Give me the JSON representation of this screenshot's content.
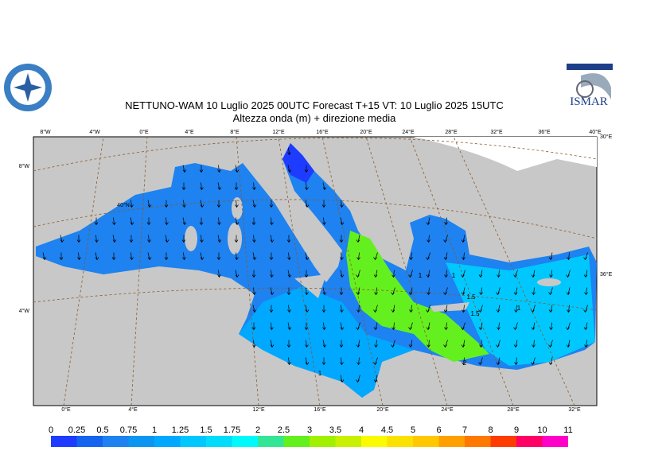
{
  "header": {
    "title": "NETTUNO-WAM  10  Luglio   2025 00UTC Forecast T+15 VT: 10  Luglio   2025 15UTC",
    "subtitle": "Altezza onda (m) + direzione media",
    "logo_right": "ISMAR"
  },
  "map": {
    "top_labels": [
      "8°W",
      "4°W",
      "0°E",
      "4°E",
      "8°E",
      "12°E",
      "16°E",
      "20°E",
      "24°E",
      "28°E",
      "32°E",
      "36°E",
      "40°E"
    ],
    "bottom_labels": [
      "0°E",
      "4°E",
      "12°E",
      "16°E",
      "20°E",
      "24°E",
      "28°E",
      "32°E"
    ],
    "left_labels": [
      "8°W",
      "4°W"
    ],
    "right_labels": [
      "30°E",
      "36°E"
    ],
    "inner_labels": [
      "40°N"
    ],
    "contour_labels": [
      "1",
      "1",
      "1",
      "1.5",
      "1.5",
      "2",
      "1"
    ]
  },
  "colorbar": {
    "levels": [
      0,
      0.25,
      0.5,
      0.75,
      1,
      1.25,
      1.5,
      1.75,
      2,
      2.5,
      3,
      3.5,
      4,
      4.5,
      5,
      6,
      7,
      8,
      9,
      10,
      11
    ],
    "colors": [
      "#1e3cff",
      "#1464f0",
      "#1e82f0",
      "#0a96f0",
      "#00a8ff",
      "#00c8ff",
      "#00dcfa",
      "#00fafa",
      "#32e696",
      "#64f01e",
      "#a0f000",
      "#c8f000",
      "#fafa00",
      "#fae100",
      "#ffc800",
      "#ffa000",
      "#ff7800",
      "#ff3c00",
      "#ff0064",
      "#ff00c8"
    ]
  }
}
